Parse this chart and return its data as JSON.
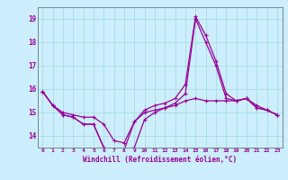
{
  "xlabel": "Windchill (Refroidissement éolien,°C)",
  "x_hours": [
    0,
    1,
    2,
    3,
    4,
    5,
    6,
    7,
    8,
    9,
    10,
    11,
    12,
    13,
    14,
    15,
    16,
    17,
    18,
    19,
    20,
    21,
    22,
    23
  ],
  "line1": [
    15.9,
    15.3,
    14.9,
    14.8,
    14.5,
    14.5,
    13.5,
    13.4,
    13.4,
    14.6,
    15.1,
    15.3,
    15.4,
    15.6,
    16.2,
    19.1,
    18.3,
    17.2,
    15.8,
    15.5,
    15.6,
    15.2,
    15.1,
    14.9
  ],
  "line2": [
    15.9,
    15.3,
    15.0,
    14.9,
    14.8,
    14.8,
    14.5,
    13.8,
    13.7,
    14.6,
    15.0,
    15.1,
    15.2,
    15.3,
    15.5,
    15.6,
    15.5,
    15.5,
    15.5,
    15.5,
    15.6,
    15.3,
    15.1,
    14.9
  ],
  "line3": [
    15.9,
    15.3,
    14.9,
    14.8,
    14.5,
    14.5,
    13.5,
    13.4,
    13.4,
    13.5,
    14.7,
    15.0,
    15.2,
    15.4,
    15.8,
    19.0,
    18.0,
    17.0,
    15.6,
    15.5,
    15.6,
    15.2,
    15.1,
    14.9
  ],
  "ylim": [
    13.5,
    19.5
  ],
  "ytick_vals": [
    14,
    15,
    16,
    17,
    18,
    19
  ],
  "bg_color": "#cceeff",
  "grid_color": "#aadddd",
  "line_color": "#990099",
  "linewidth": 0.9,
  "markersize": 3.5
}
